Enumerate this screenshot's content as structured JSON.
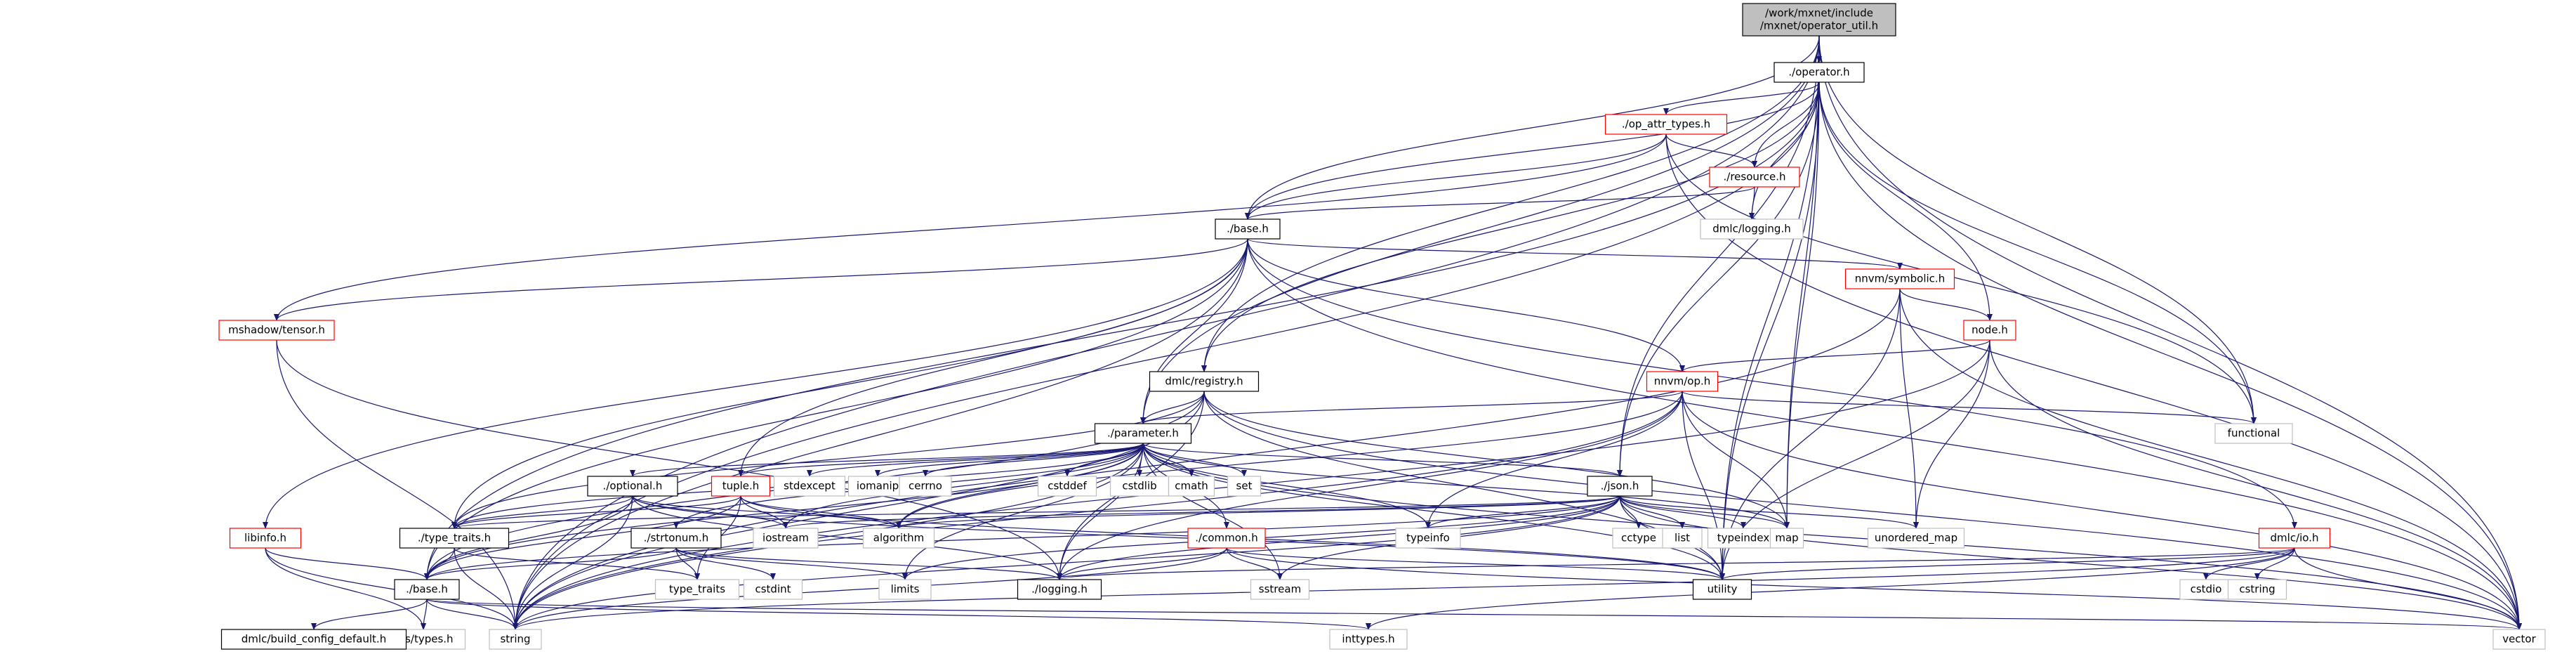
{
  "nodes": [
    {
      "lines": [
        "/work/mxnet/include",
        "/mxnet/operator_util.h"
      ]
    },
    {
      "label": "./operator.h"
    },
    {
      "label": "./op_attr_types.h"
    },
    {
      "label": "./resource.h"
    },
    {
      "label": "dmlc/logging.h"
    },
    {
      "label": "./base.h"
    },
    {
      "label": "nnvm/symbolic.h"
    },
    {
      "label": "node.h"
    },
    {
      "label": "mshadow/tensor.h"
    },
    {
      "label": "dmlc/registry.h"
    },
    {
      "label": "nnvm/op.h"
    },
    {
      "label": "functional"
    },
    {
      "label": "./parameter.h"
    },
    {
      "label": "./optional.h"
    },
    {
      "label": "tuple.h"
    },
    {
      "label": "stdexcept"
    },
    {
      "label": "iomanip"
    },
    {
      "label": "cerrno"
    },
    {
      "label": "cstddef"
    },
    {
      "label": "cstdlib"
    },
    {
      "label": "cmath"
    },
    {
      "label": "set"
    },
    {
      "label": "./json.h"
    },
    {
      "label": "libinfo.h"
    },
    {
      "label": "./type_traits.h"
    },
    {
      "label": "./strtonum.h"
    },
    {
      "label": "iostream"
    },
    {
      "label": "algorithm"
    },
    {
      "label": "./common.h"
    },
    {
      "label": "typeinfo"
    },
    {
      "label": "cctype"
    },
    {
      "label": "list"
    },
    {
      "label": "typeindex"
    },
    {
      "label": "map"
    },
    {
      "label": "unordered_map"
    },
    {
      "label": "dmlc/io.h"
    },
    {
      "label": "./base.h"
    },
    {
      "label": "type_traits"
    },
    {
      "label": "cstdint"
    },
    {
      "label": "limits"
    },
    {
      "label": "./logging.h"
    },
    {
      "label": "sstream"
    },
    {
      "label": "utility"
    },
    {
      "label": "cstdio"
    },
    {
      "label": "cstring"
    },
    {
      "label": "vector"
    },
    {
      "label": "string"
    },
    {
      "label": "sys/types.h"
    },
    {
      "label": "dmlc/build_config_default.h"
    },
    {
      "label": "inttypes.h"
    }
  ]
}
